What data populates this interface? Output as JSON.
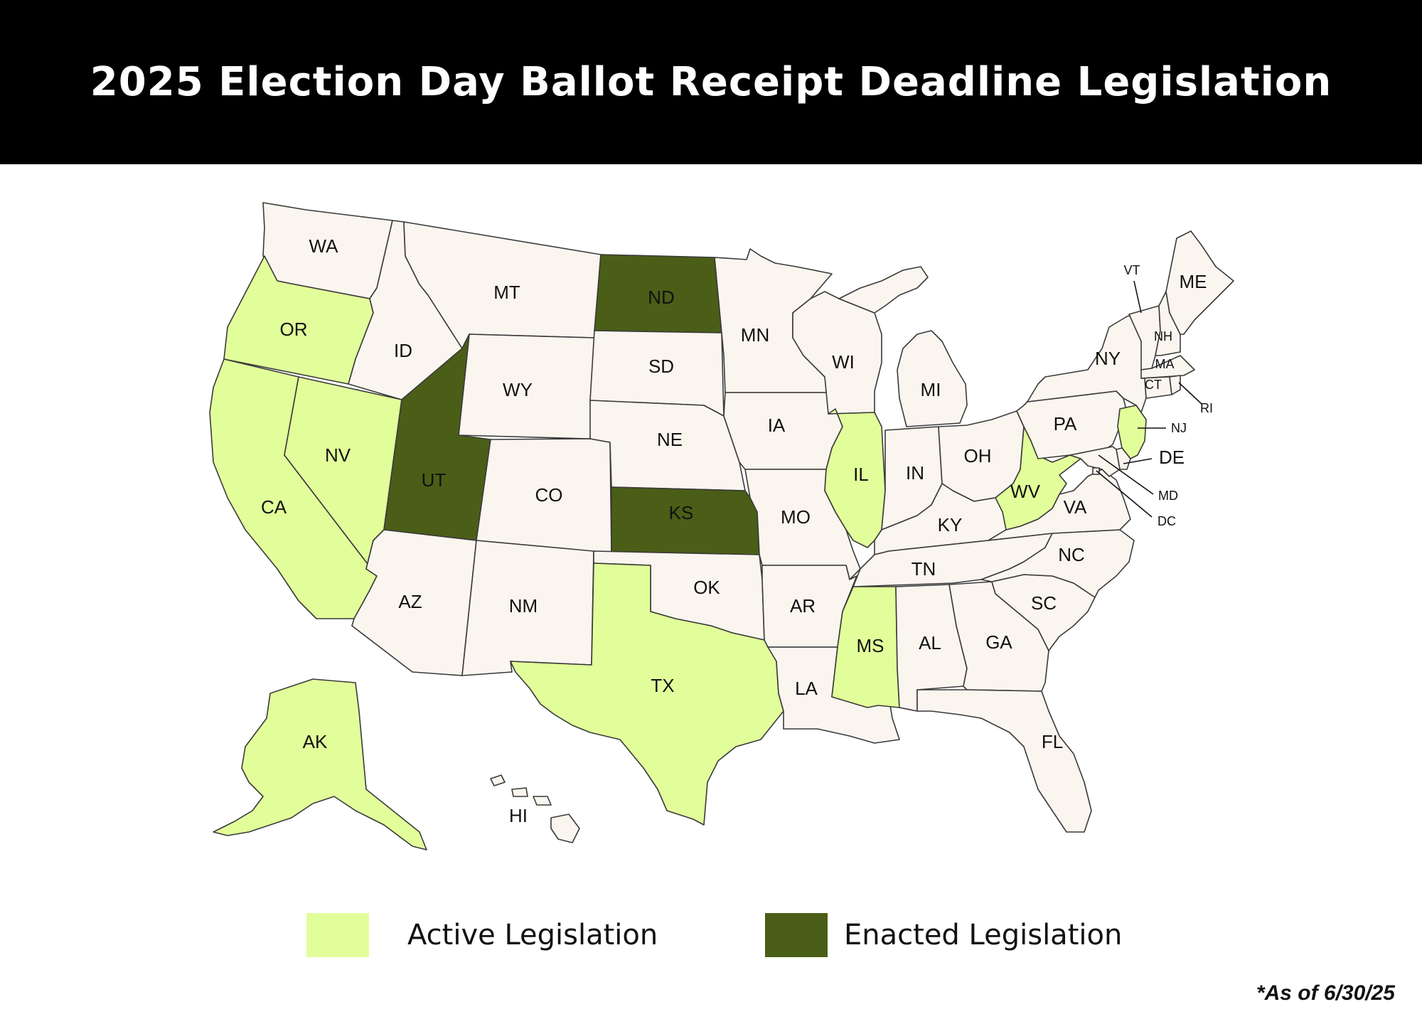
{
  "title": "2025 Election Day Ballot Receipt Deadline Legislation",
  "colors": {
    "none": "#fbf5ef",
    "active": "#e2fe9a",
    "enacted": "#4a5e17",
    "border": "#3a3a3a",
    "title_bg": "#000000"
  },
  "legend": {
    "active_label": "Active Legislation",
    "enacted_label": "Enacted Legislation"
  },
  "footnote": "*As of 6/30/25",
  "states": [
    {
      "code": "WA",
      "status": "none"
    },
    {
      "code": "OR",
      "status": "active"
    },
    {
      "code": "CA",
      "status": "active"
    },
    {
      "code": "NV",
      "status": "active"
    },
    {
      "code": "ID",
      "status": "none"
    },
    {
      "code": "MT",
      "status": "none"
    },
    {
      "code": "WY",
      "status": "none"
    },
    {
      "code": "UT",
      "status": "enacted"
    },
    {
      "code": "AZ",
      "status": "none"
    },
    {
      "code": "CO",
      "status": "none"
    },
    {
      "code": "NM",
      "status": "none"
    },
    {
      "code": "ND",
      "status": "enacted"
    },
    {
      "code": "SD",
      "status": "none"
    },
    {
      "code": "NE",
      "status": "none"
    },
    {
      "code": "KS",
      "status": "enacted"
    },
    {
      "code": "OK",
      "status": "none"
    },
    {
      "code": "TX",
      "status": "active"
    },
    {
      "code": "MN",
      "status": "none"
    },
    {
      "code": "IA",
      "status": "none"
    },
    {
      "code": "MO",
      "status": "none"
    },
    {
      "code": "AR",
      "status": "none"
    },
    {
      "code": "LA",
      "status": "none"
    },
    {
      "code": "WI",
      "status": "none"
    },
    {
      "code": "IL",
      "status": "active"
    },
    {
      "code": "MI",
      "status": "none"
    },
    {
      "code": "IN",
      "status": "none"
    },
    {
      "code": "OH",
      "status": "none"
    },
    {
      "code": "KY",
      "status": "none"
    },
    {
      "code": "TN",
      "status": "none"
    },
    {
      "code": "MS",
      "status": "active"
    },
    {
      "code": "AL",
      "status": "none"
    },
    {
      "code": "GA",
      "status": "none"
    },
    {
      "code": "FL",
      "status": "none"
    },
    {
      "code": "SC",
      "status": "none"
    },
    {
      "code": "NC",
      "status": "none"
    },
    {
      "code": "VA",
      "status": "none"
    },
    {
      "code": "WV",
      "status": "active"
    },
    {
      "code": "PA",
      "status": "none"
    },
    {
      "code": "NY",
      "status": "none"
    },
    {
      "code": "VT",
      "status": "none"
    },
    {
      "code": "NH",
      "status": "none"
    },
    {
      "code": "ME",
      "status": "none"
    },
    {
      "code": "MA",
      "status": "none"
    },
    {
      "code": "CT",
      "status": "none"
    },
    {
      "code": "RI",
      "status": "none"
    },
    {
      "code": "NJ",
      "status": "active"
    },
    {
      "code": "DE",
      "status": "none"
    },
    {
      "code": "MD",
      "status": "none"
    },
    {
      "code": "DC",
      "status": "none"
    },
    {
      "code": "AK",
      "status": "active"
    },
    {
      "code": "HI",
      "status": "none"
    }
  ]
}
